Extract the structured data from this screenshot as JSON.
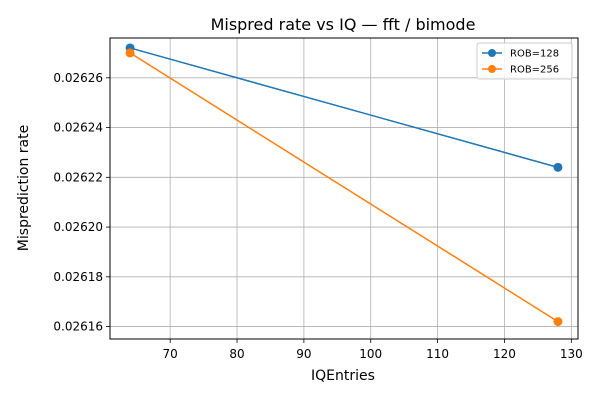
{
  "chart_data": {
    "type": "line",
    "title": "Mispred rate vs IQ — fft / bimode",
    "xlabel": "IQEntries",
    "ylabel": "Misprediction rate",
    "xlim": [
      61,
      131
    ],
    "ylim": [
      0.026155,
      0.026276
    ],
    "xticks": [
      70,
      80,
      90,
      100,
      110,
      120,
      130
    ],
    "yticks": [
      0.02616,
      0.02618,
      0.0262,
      0.02622,
      0.02624,
      0.02626
    ],
    "ytick_labels": [
      "0.02616",
      "0.02618",
      "0.02620",
      "0.02622",
      "0.02624",
      "0.02626"
    ],
    "grid": true,
    "legend_position": "top-right",
    "series": [
      {
        "name": "ROB=128",
        "color": "#1f77b4",
        "x": [
          64,
          128
        ],
        "y": [
          0.026272,
          0.026224
        ]
      },
      {
        "name": "ROB=256",
        "color": "#ff7f0e",
        "x": [
          64,
          128
        ],
        "y": [
          0.02627,
          0.026162
        ]
      }
    ]
  }
}
